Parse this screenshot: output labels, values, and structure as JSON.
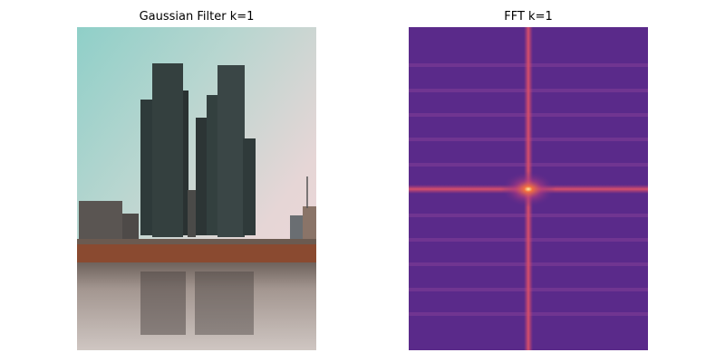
{
  "panels": [
    {
      "title": "Gaussian Filter k=1"
    },
    {
      "title": "FFT k=1"
    }
  ]
}
